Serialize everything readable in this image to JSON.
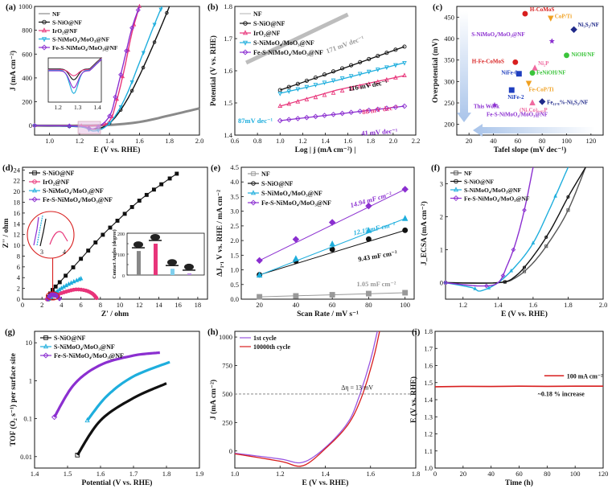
{
  "panels": {
    "a": {
      "label": "(a)",
      "xlabel": "E (V vs. RHE)",
      "ylabel": "J (mA cm⁻²)",
      "xlim": [
        0.9,
        2.0
      ],
      "ylim": [
        -80,
        1000
      ],
      "xticks": [
        "1.0",
        "1.2",
        "1.4",
        "1.6",
        "1.8",
        "2.0"
      ],
      "yticks": [
        "0",
        "200",
        "400",
        "600",
        "800",
        "1000"
      ],
      "legend": [
        "NF",
        "S-NiO@NF",
        "IrO₂@NF",
        "S-NiMoO₄/MoO₃@NF",
        "Fe-S-NiMoO₄/MoO₃@NF"
      ],
      "inset_xticks": [
        "1.2",
        "1.3",
        "1.4"
      ]
    },
    "b": {
      "label": "(b)",
      "xlabel": "Log | j (mA cm⁻²) |",
      "ylabel": "Potential (V vs. RHE)",
      "xticks": [
        "0.6",
        "0.8",
        "1.0",
        "1.2",
        "1.4",
        "1.6",
        "1.8",
        "2.0",
        "2.2"
      ],
      "yticks": [
        "1.4",
        "1.5",
        "1.6",
        "1.7",
        "1.8"
      ],
      "legend": [
        "NF",
        "S-NiO@NF",
        "IrO₂@NF",
        "S-NiMoO₄/MoO₃@NF",
        "Fe-S-NiMoO₄/MoO₃@NF"
      ],
      "annotations": [
        "171 mV dec⁻¹",
        "116 mV dec⁻¹",
        "88 mV dec⁻¹",
        "87mV dec⁻¹",
        "41 mV dec⁻¹"
      ]
    },
    "c": {
      "label": "(c)",
      "xlabel": "Tafel slope (mV dec⁻¹)",
      "ylabel": "Overpotential (mV)",
      "xticks": [
        "20",
        "40",
        "60",
        "80",
        "100",
        "120"
      ],
      "yticks": [
        "200",
        "250",
        "300",
        "350",
        "400",
        "450"
      ],
      "points": [
        "H-CoMoS",
        "CoP/Ti",
        "Ni₃S₂/NF",
        "S-NiMoO₄/MoO₃@NF",
        "H-Fe-CoMoS",
        "Ni₂P",
        "NiOH/NF",
        "NiFe-0",
        "FeNiOH/NF",
        "Fe-CoP/Ti",
        "NiFe-2",
        "(Ni₂Co)₀.₈₅P",
        "Fe₁₁.₈%-Ni₃S₂/NF",
        "This Work",
        "Fe-S-NiMoO₄/MoO₃@NF"
      ]
    },
    "d": {
      "label": "(d)",
      "xlabel": "Z' / ohm",
      "ylabel": "Z'' / ohm",
      "xticks": [
        "0",
        "2",
        "4",
        "6",
        "8",
        "10",
        "12",
        "14",
        "16",
        "18"
      ],
      "yticks": [
        "0",
        "2",
        "4",
        "6",
        "8",
        "10",
        "12",
        "14",
        "16",
        "18",
        "20",
        "22",
        "24"
      ],
      "legend": [
        "S-NiO@NF",
        "IrO₂@NF",
        "S-NiMoO₄/MoO₃@NF",
        "Fe-S-NiMoO₄/MoO₃@NF"
      ],
      "inset_ylabel": "Contact Angles (degree)",
      "inset_yticks": [
        "0",
        "20",
        "40",
        "60",
        "80",
        "100",
        "120",
        "140",
        "160",
        "180",
        "200"
      ],
      "zoom_ticks": [
        "3",
        "4"
      ]
    },
    "e": {
      "label": "(e)",
      "xlabel": "Scan Rate / mV s⁻¹",
      "ylabel": "ΔJ₁.₁ V vs. RHE / mA cm⁻²",
      "xticks": [
        "20",
        "40",
        "60",
        "80",
        "100"
      ],
      "yticks": [
        "0.0",
        "0.5",
        "1.0",
        "1.5",
        "2.0",
        "2.5",
        "3.0",
        "3.5",
        "4.0",
        "4.5"
      ],
      "legend": [
        "NF",
        "S-NiO@NF",
        "S-NiMoO₄/MoO₃@NF",
        "Fe-S-NiMoO₄/MoO₃@NF"
      ],
      "annotations": [
        "14.94 mF cm⁻²",
        "12.15 mF cm⁻²",
        "9.43 mF cm⁻²",
        "1.05 mF cm⁻²"
      ]
    },
    "f": {
      "label": "(f)",
      "xlabel": "E (V vs. RHE)",
      "ylabel": "J_ECSA (mA cm⁻²)",
      "xticks": [
        "1.2",
        "1.4",
        "1.6",
        "1.8",
        "2.0"
      ],
      "yticks": [
        "0",
        "1",
        "2",
        "3"
      ],
      "legend": [
        "NF",
        "S-NiO@NF",
        "S-NiMoO₄/MoO₃@NF",
        "Fe-S-NiMoO₄/MoO₃@NF"
      ]
    },
    "g": {
      "label": "(g)",
      "xlabel": "Potential (V vs. RHE)",
      "ylabel": "TOF (O₂ s⁻¹) per surface site",
      "xticks": [
        "1.4",
        "1.5",
        "1.6",
        "1.7",
        "1.8",
        "1.9"
      ],
      "yticks": [
        "0.01",
        "0.1",
        "1",
        "10"
      ],
      "legend": [
        "S-NiO@NF",
        "S-NiMoO₄/MoO₃@NF",
        "Fe-S-NiMoO₄/MoO₃@NF"
      ]
    },
    "h": {
      "label": "(h)",
      "xlabel": "E (V vs. RHE)",
      "ylabel": "J (mA cm⁻²)",
      "xticks": [
        "1.0",
        "1.2",
        "1.4",
        "1.6",
        "1.8"
      ],
      "yticks": [
        "0",
        "250",
        "500",
        "750",
        "1000"
      ],
      "legend": [
        "1st cycle",
        "10000th cycle"
      ],
      "annotation": "Δη = 13 mV"
    },
    "i": {
      "label": "(i)",
      "xlabel": "Time (h)",
      "ylabel": "E (V vs. RHE)",
      "xticks": [
        "0",
        "20",
        "40",
        "60",
        "80",
        "100",
        "120"
      ],
      "yticks": [
        "1.0",
        "1.1",
        "1.2",
        "1.3",
        "1.4",
        "1.5",
        "1.6",
        "1.7",
        "1.8"
      ],
      "legend": [
        "100 mA cm⁻²"
      ],
      "annotation": "~0.18 % increase"
    }
  },
  "colors": {
    "black": "#111111",
    "gray": "#8a8a8a",
    "pink": "#e8357a",
    "cyan": "#1eaedd",
    "purple": "#8b2fd0",
    "red": "#d81e1e",
    "orange": "#f0a020",
    "green": "#3bc43b",
    "blue": "#1f3fbf",
    "navy": "#202a8a"
  },
  "chart_data": [
    {
      "panel": "a",
      "type": "line",
      "xlabel": "E (V vs. RHE)",
      "ylabel": "J (mA cm⁻²)",
      "xlim": [
        0.9,
        2.0
      ],
      "ylim": [
        -80,
        1000
      ],
      "series": [
        {
          "name": "NF",
          "x": [
            0.9,
            1.2,
            1.4,
            1.6,
            1.8,
            2.0
          ],
          "values": [
            0,
            0,
            5,
            30,
            85,
            145
          ]
        },
        {
          "name": "S-NiO@NF",
          "x": [
            0.9,
            1.2,
            1.3,
            1.4,
            1.5,
            1.6,
            1.7,
            1.8
          ],
          "values": [
            0,
            -10,
            -30,
            20,
            180,
            420,
            700,
            1000
          ]
        },
        {
          "name": "IrO₂@NF",
          "x": [
            0.9,
            1.3,
            1.4,
            1.45,
            1.5,
            1.55,
            1.6
          ],
          "values": [
            0,
            0,
            40,
            220,
            480,
            780,
            1000
          ]
        },
        {
          "name": "S-NiMoO₄/MoO₃@NF",
          "x": [
            0.9,
            1.2,
            1.3,
            1.4,
            1.5,
            1.6,
            1.7,
            1.75
          ],
          "values": [
            0,
            -10,
            -45,
            20,
            220,
            530,
            850,
            1000
          ]
        },
        {
          "name": "Fe-S-NiMoO₄/MoO₃@NF",
          "x": [
            0.9,
            1.2,
            1.3,
            1.4,
            1.45,
            1.5,
            1.55,
            1.6
          ],
          "values": [
            0,
            -5,
            -25,
            80,
            300,
            560,
            820,
            1000
          ]
        }
      ]
    },
    {
      "panel": "b",
      "type": "line",
      "xlabel": "Log | j (mA cm⁻²) |",
      "ylabel": "Potential (V vs. RHE)",
      "xlim": [
        0.6,
        2.2
      ],
      "ylim": [
        1.4,
        1.8
      ],
      "series": [
        {
          "name": "NF",
          "x": [
            0.7,
            1.0,
            1.3,
            1.6
          ],
          "values": [
            1.625,
            1.675,
            1.725,
            1.775
          ]
        },
        {
          "name": "S-NiO@NF",
          "x": [
            1.0,
            1.5,
            2.1
          ],
          "values": [
            1.54,
            1.6,
            1.675
          ]
        },
        {
          "name": "IrO₂@NF",
          "x": [
            1.0,
            1.5,
            2.1
          ],
          "values": [
            1.49,
            1.54,
            1.585
          ]
        },
        {
          "name": "S-NiMoO₄/MoO₃@NF",
          "x": [
            1.0,
            1.5,
            2.1
          ],
          "values": [
            1.53,
            1.57,
            1.625
          ]
        },
        {
          "name": "Fe-S-NiMoO₄/MoO₃@NF",
          "x": [
            1.0,
            1.5,
            2.1
          ],
          "values": [
            1.445,
            1.465,
            1.49
          ]
        }
      ]
    },
    {
      "panel": "c",
      "type": "scatter",
      "xlabel": "Tafel slope (mV dec⁻¹)",
      "ylabel": "Overpotential (mV)",
      "xlim": [
        10,
        130
      ],
      "ylim": [
        175,
        475
      ],
      "points": [
        {
          "name": "H-CoMoS",
          "x": 66,
          "y": 458
        },
        {
          "name": "CoP/Ti",
          "x": 87,
          "y": 448
        },
        {
          "name": "Ni₃S₂/NF",
          "x": 106,
          "y": 421
        },
        {
          "name": "S-NiMoO₄/MoO₃@NF",
          "x": 88,
          "y": 394
        },
        {
          "name": "H-Fe-CoMoS",
          "x": 58,
          "y": 345
        },
        {
          "name": "Ni₂P",
          "x": 74,
          "y": 331
        },
        {
          "name": "NiOH/NF",
          "x": 100,
          "y": 361
        },
        {
          "name": "NiFe-0",
          "x": 61,
          "y": 318
        },
        {
          "name": "FeNiOH/NF",
          "x": 72,
          "y": 320
        },
        {
          "name": "Fe-CoP/Ti",
          "x": 69,
          "y": 296
        },
        {
          "name": "NiFe-2",
          "x": 55,
          "y": 280
        },
        {
          "name": "(Ni₂Co)₀.₈₅P",
          "x": 72,
          "y": 250
        },
        {
          "name": "Fe₁₁.₈%-Ni₃S₂/NF",
          "x": 80,
          "y": 253
        },
        {
          "name": "Fe-S-NiMoO₄/MoO₃@NF",
          "x": 41,
          "y": 245
        }
      ]
    },
    {
      "panel": "d",
      "type": "line",
      "xlabel": "Z' / ohm",
      "ylabel": "Z'' / ohm",
      "xlim": [
        0,
        19
      ],
      "ylim": [
        0,
        24.5
      ],
      "series": [
        {
          "name": "S-NiO@NF",
          "x": [
            2.6,
            3.0,
            4,
            6,
            8,
            10,
            12,
            14,
            16
          ],
          "values": [
            0,
            1.5,
            3.5,
            7.5,
            11.5,
            15,
            18.3,
            21,
            23.5
          ]
        },
        {
          "name": "IrO₂@NF",
          "x": [
            2.5,
            3.5,
            4.5,
            5.5,
            6.5,
            7.2,
            7.6
          ],
          "values": [
            0,
            0.8,
            1.4,
            1.8,
            1.6,
            1.0,
            0.2
          ]
        },
        {
          "name": "S-NiMoO₄/MoO₃@NF",
          "x": [
            2.7,
            3.2,
            4.0,
            5.0,
            6.0
          ],
          "values": [
            0,
            0.9,
            2.0,
            3.0,
            3.8
          ]
        },
        {
          "name": "Fe-S-NiMoO₄/MoO₃@NF",
          "x": [
            2.6,
            2.9,
            3.2,
            3.5,
            3.8
          ],
          "values": [
            0,
            0.8,
            0.9,
            0.6,
            0.1
          ]
        }
      ],
      "inset": {
        "type": "bar",
        "ylabel": "Contact Angles (degree)",
        "values": [
          115,
          150,
          30,
          8
        ]
      }
    },
    {
      "panel": "e",
      "type": "scatter",
      "xlabel": "Scan Rate / mV s⁻¹",
      "ylabel": "ΔJ₁.₁ V vs. RHE / mA cm⁻²",
      "xlim": [
        10,
        105
      ],
      "ylim": [
        0,
        4.5
      ],
      "x": [
        20,
        40,
        60,
        80,
        100
      ],
      "series": [
        {
          "name": "NF",
          "values": [
            0.08,
            0.11,
            0.15,
            0.19,
            0.22
          ]
        },
        {
          "name": "S-NiO@NF",
          "values": [
            0.83,
            1.3,
            1.7,
            2.05,
            2.35
          ]
        },
        {
          "name": "S-NiMoO₄/MoO₃@NF",
          "values": [
            0.82,
            1.38,
            1.88,
            2.34,
            2.75
          ]
        },
        {
          "name": "Fe-S-NiMoO₄/MoO₃@NF",
          "values": [
            1.32,
            2.04,
            2.62,
            3.18,
            3.75
          ]
        }
      ]
    },
    {
      "panel": "f",
      "type": "line",
      "xlabel": "E (V vs. RHE)",
      "ylabel": "J_ECSA (mA cm⁻²)",
      "xlim": [
        1.1,
        2.0
      ],
      "ylim": [
        -0.5,
        3.5
      ],
      "series": [
        {
          "name": "NF",
          "x": [
            1.1,
            1.4,
            1.5,
            1.6,
            1.7,
            1.8,
            1.9
          ],
          "values": [
            0,
            0,
            0.15,
            0.6,
            1.3,
            2.2,
            3.5
          ]
        },
        {
          "name": "S-NiO@NF",
          "x": [
            1.1,
            1.4,
            1.5,
            1.6,
            1.7,
            1.8,
            1.9
          ],
          "values": [
            0,
            0,
            0.2,
            0.8,
            1.6,
            2.6,
            3.5
          ]
        },
        {
          "name": "S-NiMoO₄/MoO₃@NF",
          "x": [
            1.1,
            1.25,
            1.3,
            1.4,
            1.5,
            1.6,
            1.7,
            1.8
          ],
          "values": [
            0,
            -0.15,
            -0.25,
            0,
            0.5,
            1.2,
            2.3,
            3.5
          ]
        },
        {
          "name": "Fe-S-NiMoO₄/MoO₃@NF",
          "x": [
            1.1,
            1.3,
            1.4,
            1.45,
            1.5,
            1.55,
            1.6
          ],
          "values": [
            0,
            -0.1,
            0,
            0.5,
            1.2,
            2.2,
            3.5
          ]
        }
      ]
    },
    {
      "panel": "g",
      "type": "line",
      "xlabel": "Potential (V vs. RHE)",
      "ylabel": "TOF (O₂ s⁻¹) per surface site",
      "xlim": [
        1.4,
        1.9
      ],
      "ylim": [
        0.005,
        20
      ],
      "yscale": "log",
      "series": [
        {
          "name": "S-NiO@NF",
          "x": [
            1.53,
            1.6,
            1.7,
            1.8
          ],
          "values": [
            0.011,
            0.09,
            0.35,
            0.85
          ]
        },
        {
          "name": "S-NiMoO₄/MoO₃@NF",
          "x": [
            1.56,
            1.62,
            1.7,
            1.81
          ],
          "values": [
            0.09,
            0.4,
            1.3,
            3.1
          ]
        },
        {
          "name": "Fe-S-NiMoO₄/MoO₃@NF",
          "x": [
            1.46,
            1.52,
            1.6,
            1.7,
            1.78
          ],
          "values": [
            0.11,
            0.8,
            2.6,
            4.6,
            5.5
          ]
        }
      ]
    },
    {
      "panel": "h",
      "type": "line",
      "xlabel": "E (V vs. RHE)",
      "ylabel": "J (mA cm⁻²)",
      "xlim": [
        1.0,
        1.8
      ],
      "ylim": [
        -150,
        1050
      ],
      "series": [
        {
          "name": "1st cycle",
          "x": [
            1.0,
            1.2,
            1.3,
            1.4,
            1.5,
            1.55,
            1.6,
            1.63
          ],
          "values": [
            -20,
            -70,
            -100,
            30,
            250,
            480,
            800,
            1050
          ]
        },
        {
          "name": "10000th cycle",
          "x": [
            1.0,
            1.2,
            1.3,
            1.4,
            1.5,
            1.56,
            1.61,
            1.64
          ],
          "values": [
            -25,
            -90,
            -130,
            20,
            230,
            470,
            790,
            1050
          ]
        }
      ]
    },
    {
      "panel": "i",
      "type": "line",
      "xlabel": "Time (h)",
      "ylabel": "E (V vs. RHE)",
      "xlim": [
        0,
        120
      ],
      "ylim": [
        1.0,
        1.8
      ],
      "series": [
        {
          "name": "100 mA cm⁻²",
          "x": [
            0,
            20,
            40,
            60,
            80,
            100,
            120
          ],
          "values": [
            1.476,
            1.478,
            1.477,
            1.479,
            1.478,
            1.479,
            1.479
          ]
        }
      ]
    }
  ]
}
